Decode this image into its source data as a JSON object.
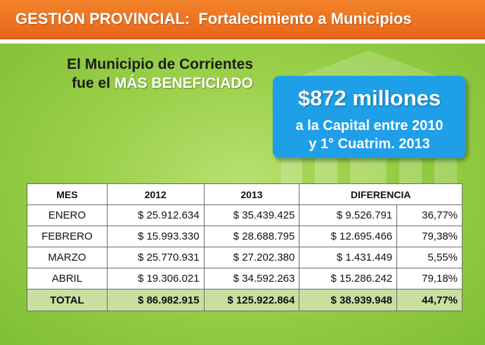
{
  "header": {
    "title": "GESTIÓN PROVINCIAL:  Fortalecimiento a Municipios"
  },
  "intro": {
    "line1": "El Municipio de Corrientes",
    "line2_prefix": "fue el ",
    "line2_highlight": "MÁS BENEFICIADO"
  },
  "callout": {
    "amount": "$872 millones",
    "line1": "a la Capital entre 2010",
    "line2": "y 1° Cuatrim. 2013"
  },
  "table": {
    "headers": {
      "mes": "MES",
      "y2012": "2012",
      "y2013": "2013",
      "diferencia": "DIFERENCIA"
    },
    "rows": [
      {
        "mes": "ENERO",
        "y2012": "$ 25.912.634",
        "y2013": "$ 35.439.425",
        "diff": "$ 9.526.791",
        "pct": "36,77%"
      },
      {
        "mes": "FEBRERO",
        "y2012": "$ 15.993.330",
        "y2013": "$ 28.688.795",
        "diff": "$ 12.695.466",
        "pct": "79,38%"
      },
      {
        "mes": "MARZO",
        "y2012": "$ 25.770.931",
        "y2013": "$ 27.202.380",
        "diff": "$ 1.431.449",
        "pct": "5,55%"
      },
      {
        "mes": "ABRIL",
        "y2012": "$ 19.306.021",
        "y2013": "$ 34.592.263",
        "diff": "$ 15.286.242",
        "pct": "79,18%"
      }
    ],
    "total": {
      "mes": "TOTAL",
      "y2012": "$ 86.982.915",
      "y2013": "$ 125.922.864",
      "diff": "$ 38.939.948",
      "pct": "44,77%"
    }
  },
  "colors": {
    "header": "#e8661a",
    "panel": "#9bd04a",
    "callout": "#1e9fe8",
    "total_row": "#c9dfa0"
  }
}
